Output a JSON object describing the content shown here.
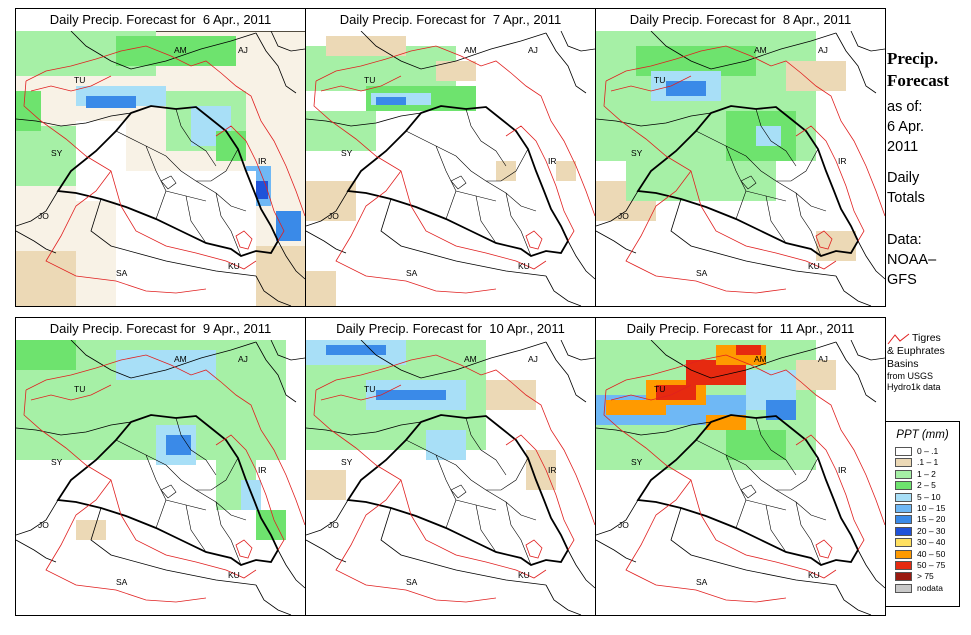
{
  "panels": [
    {
      "title": "Daily Precip. Forecast for  6 Apr., 2011"
    },
    {
      "title": "Daily Precip. Forecast for  7 Apr., 2011"
    },
    {
      "title": "Daily Precip. Forecast for  8 Apr., 2011"
    },
    {
      "title": "Daily Precip. Forecast for  9 Apr., 2011"
    },
    {
      "title": "Daily Precip. Forecast for  10 Apr., 2011"
    },
    {
      "title": "Daily Precip. Forecast for  11 Apr., 2011"
    }
  ],
  "map_labels": {
    "am": "AM",
    "aj": "AJ",
    "tu": "TU",
    "sy": "SY",
    "ir": "IR",
    "jo": "JO",
    "sa": "SA",
    "ku": "KU"
  },
  "sidebar": {
    "title_line1": "Precip.",
    "title_line2": "Forecast",
    "asof": "as of:",
    "date_line1": "6 Apr.",
    "date_line2": "2011",
    "daily_line1": "Daily",
    "daily_line2": "Totals",
    "data_line1": "Data:",
    "data_line2": "NOAA–",
    "data_line3": "GFS"
  },
  "basin_legend": {
    "line1": "Tigres",
    "line2": "& Euphrates",
    "line3": "Basins",
    "source1": "from USGS",
    "source2": "Hydro1k data",
    "line_color": "#e02020"
  },
  "ppt_legend": {
    "title": "PPT (mm)",
    "classes": [
      {
        "label": "0 – .1",
        "color": "#ffffff"
      },
      {
        "label": ".1 – 1",
        "color": "#ecd9b6"
      },
      {
        "label": "1 – 2",
        "color": "#a6f0a6"
      },
      {
        "label": "2 – 5",
        "color": "#6ee36e"
      },
      {
        "label": "5 – 10",
        "color": "#a8dff7"
      },
      {
        "label": "10 – 15",
        "color": "#6fb8f5"
      },
      {
        "label": "15 – 20",
        "color": "#3a8ae8"
      },
      {
        "label": "20 – 30",
        "color": "#1f52d9"
      },
      {
        "label": "30 – 40",
        "color": "#ffe060"
      },
      {
        "label": "40 – 50",
        "color": "#ff9a00"
      },
      {
        "label": "50 – 75",
        "color": "#e62a10"
      },
      {
        "label": "> 75",
        "color": "#9a1a10"
      },
      {
        "label": "nodata",
        "color": "#c8c8c8"
      }
    ]
  }
}
